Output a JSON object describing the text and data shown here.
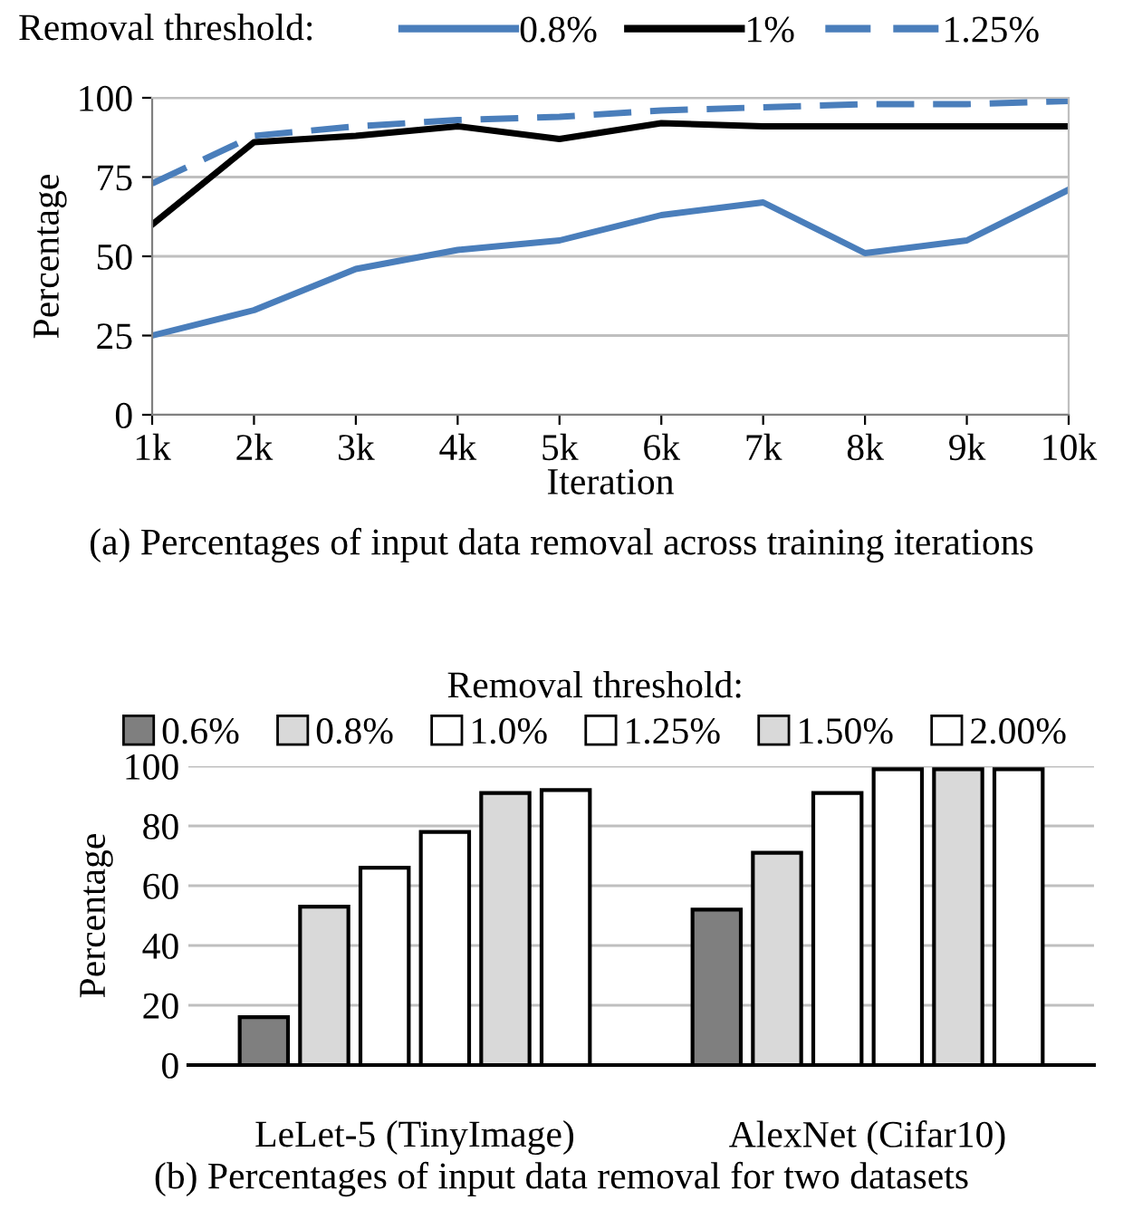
{
  "chart_data": [
    {
      "type": "line",
      "xlabel": "Iteration",
      "ylabel": "Percentage",
      "legend_title": "Removal threshold:",
      "legend": "top",
      "categories": [
        "1k",
        "2k",
        "3k",
        "4k",
        "5k",
        "6k",
        "7k",
        "8k",
        "9k",
        "10k"
      ],
      "ylim": [
        0,
        100
      ],
      "yticks": [
        0,
        25,
        50,
        75,
        100
      ],
      "grid": "y",
      "annotations": [
        "(a) Percentages of input data removal across training iterations"
      ],
      "series": [
        {
          "name": "0.8%",
          "color": "#4a7ebb",
          "line_style": "solid",
          "values": [
            25,
            33,
            46,
            52,
            55,
            63,
            67,
            51,
            55,
            71
          ]
        },
        {
          "name": "1%",
          "color": "#000000",
          "line_style": "solid",
          "values": [
            60,
            86,
            88,
            91,
            87,
            92,
            91,
            91,
            91,
            91
          ]
        },
        {
          "name": "1.25%",
          "color": "#4a7ebb",
          "line_style": "dashed",
          "values": [
            73,
            88,
            91,
            93,
            94,
            96,
            97,
            98,
            98,
            99
          ]
        }
      ]
    },
    {
      "type": "bar",
      "ylabel": "Percentage",
      "legend_title": "Removal threshold:",
      "legend": "top",
      "categories": [
        "LeLet-5 (TinyImage)",
        "AlexNet (Cifar10)"
      ],
      "ylim": [
        0,
        100
      ],
      "yticks": [
        0,
        20,
        40,
        60,
        80,
        100
      ],
      "grid": "y",
      "annotations": [
        "(b) Percentages of input data removal for two datasets"
      ],
      "series": [
        {
          "name": "0.6%",
          "color": "#7f7f7f",
          "values": [
            16,
            52
          ]
        },
        {
          "name": "0.8%",
          "color": "#d9d9d9",
          "values": [
            53,
            71
          ]
        },
        {
          "name": "1.0%",
          "color": "#ffffff",
          "values": [
            66,
            91
          ]
        },
        {
          "name": "1.25%",
          "color": "#ffffff",
          "values": [
            78,
            99
          ]
        },
        {
          "name": "1.50%",
          "color": "#d9d9d9",
          "values": [
            91,
            99
          ]
        },
        {
          "name": "2.00%",
          "color": "#ffffff",
          "values": [
            92,
            99
          ]
        }
      ]
    }
  ]
}
